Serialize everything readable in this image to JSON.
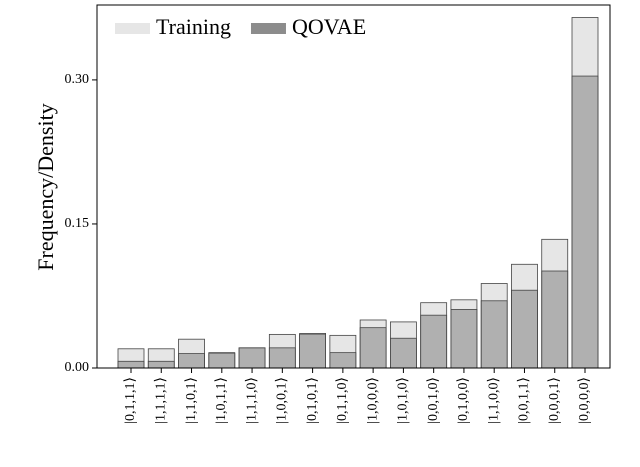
{
  "chart_data": {
    "type": "bar",
    "y_label": "Frequency/Density",
    "categories": [
      "|0,1,1,1⟩",
      "|1,1,1,1⟩",
      "|1,1,0,1⟩",
      "|1,0,1,1⟩",
      "|1,1,1,0⟩",
      "|1,0,0,1⟩",
      "|0,1,0,1⟩",
      "|0,1,1,0⟩",
      "|1,0,0,0⟩",
      "|1,0,1,0⟩",
      "|0,0,1,0⟩",
      "|0,1,0,0⟩",
      "|1,1,0,0⟩",
      "|0,0,1,1⟩",
      "|0,0,0,1⟩",
      "|0,0,0,0⟩"
    ],
    "series": [
      {
        "name": "Training",
        "color": "#e6e6e6",
        "values": [
          0.02,
          0.02,
          0.03,
          0.015,
          0.021,
          0.035,
          0.035,
          0.034,
          0.05,
          0.048,
          0.068,
          0.071,
          0.088,
          0.108,
          0.134,
          0.365
        ]
      },
      {
        "name": "QOVAE",
        "color": "#8c8c8c",
        "values": [
          0.007,
          0.007,
          0.015,
          0.016,
          0.021,
          0.021,
          0.036,
          0.016,
          0.042,
          0.031,
          0.055,
          0.061,
          0.07,
          0.081,
          0.101,
          0.304
        ]
      }
    ],
    "ylim": [
      0,
      0.378
    ],
    "yticks": [
      {
        "value": 0,
        "label": "0.00"
      },
      {
        "value": 0.15,
        "label": "0.15"
      },
      {
        "value": 0.3,
        "label": "0.30"
      }
    ],
    "legend": "upper-left",
    "grid": false
  }
}
